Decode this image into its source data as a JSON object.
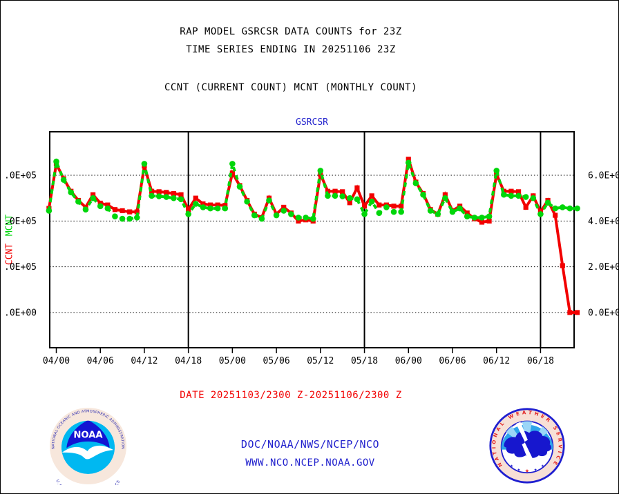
{
  "header": {
    "title_line1": "RAP MODEL GSRCSR DATA COUNTS for 23Z",
    "title_line2": "TIME SERIES ENDING IN 20251106 23Z",
    "subtitle": "CCNT (CURRENT COUNT) MCNT (MONTHLY COUNT)"
  },
  "chart": {
    "panel_title": "GSRCSR",
    "mcnt_label": "MCNT",
    "ccnt_label": "CCNT",
    "mcnt_color": "#00d60a",
    "ccnt_color": "#f20000",
    "title_color": "#2121cd"
  },
  "chart_data": {
    "type": "line",
    "title": "GSRCSR",
    "xlabel": "",
    "ylabel_left_series": [
      "MCNT",
      "CCNT"
    ],
    "x": [
      "03/23",
      "04/00",
      "04/01",
      "04/02",
      "04/03",
      "04/04",
      "04/05",
      "04/06",
      "04/07",
      "04/08",
      "04/09",
      "04/10",
      "04/11",
      "04/12",
      "04/13",
      "04/14",
      "04/15",
      "04/16",
      "04/17",
      "04/18",
      "04/19",
      "04/20",
      "04/21",
      "04/22",
      "04/23",
      "05/00",
      "05/01",
      "05/02",
      "05/03",
      "05/04",
      "05/05",
      "05/06",
      "05/07",
      "05/08",
      "05/09",
      "05/10",
      "05/11",
      "05/12",
      "05/13",
      "05/14",
      "05/15",
      "05/16",
      "05/17",
      "05/18",
      "05/19",
      "05/20",
      "05/21",
      "05/22",
      "05/23",
      "06/00",
      "06/01",
      "06/02",
      "06/03",
      "06/04",
      "06/05",
      "06/06",
      "06/07",
      "06/08",
      "06/09",
      "06/10",
      "06/11",
      "06/12",
      "06/13",
      "06/14",
      "06/15",
      "06/16",
      "06/17",
      "06/18",
      "06/19",
      "06/20",
      "06/21",
      "06/22",
      "06/23"
    ],
    "x_tick_labels": [
      "04/00",
      "04/06",
      "04/12",
      "04/18",
      "05/00",
      "05/06",
      "05/12",
      "05/18",
      "06/00",
      "06/06",
      "06/12",
      "06/18"
    ],
    "x_gridlines_at": [
      "04/18",
      "05/18",
      "06/18"
    ],
    "y_ticks": [
      600000,
      400000,
      200000,
      0
    ],
    "y_tick_labels_left": [
      ".0E+05",
      ".0E+05",
      ".0E+05",
      ".0E+00"
    ],
    "y_tick_labels_right": [
      "6.0E+0",
      "4.0E+0",
      "2.0E+0",
      "0.0E+0"
    ],
    "ylim": [
      -154000,
      790000
    ],
    "grid": "horizontal dotted at y ticks, solid vertical day lines",
    "legend_position": "left-axis rotated labels",
    "series": [
      {
        "name": "CCNT",
        "color": "#f20000",
        "marker": "square",
        "line": "solid",
        "values": [
          455000,
          650000,
          585000,
          530000,
          490000,
          460000,
          515000,
          478000,
          470000,
          450000,
          445000,
          440000,
          440000,
          640000,
          530000,
          528000,
          525000,
          520000,
          515000,
          450000,
          500000,
          475000,
          470000,
          470000,
          468000,
          610000,
          555000,
          490000,
          430000,
          415000,
          500000,
          430000,
          460000,
          435000,
          400000,
          405000,
          400000,
          605000,
          530000,
          530000,
          528000,
          480000,
          545000,
          465000,
          510000,
          470000,
          470000,
          465000,
          465000,
          670000,
          570000,
          520000,
          450000,
          430000,
          515000,
          445000,
          465000,
          435000,
          410000,
          395000,
          400000,
          605000,
          530000,
          530000,
          528000,
          460000,
          510000,
          440000,
          490000,
          425000,
          205000,
          0,
          0
        ]
      },
      {
        "name": "MCNT",
        "color": "#00d60a",
        "marker": "circle",
        "line": "dashed",
        "values": [
          445000,
          660000,
          580000,
          525000,
          485000,
          450000,
          500000,
          465000,
          455000,
          420000,
          410000,
          410000,
          415000,
          650000,
          510000,
          508000,
          505000,
          500000,
          495000,
          430000,
          475000,
          460000,
          455000,
          455000,
          455000,
          650000,
          550000,
          485000,
          425000,
          410000,
          490000,
          425000,
          445000,
          430000,
          415000,
          415000,
          410000,
          620000,
          510000,
          510000,
          508000,
          500000,
          495000,
          430000,
          485000,
          435000,
          460000,
          440000,
          440000,
          655000,
          565000,
          515000,
          445000,
          430000,
          500000,
          440000,
          455000,
          420000,
          415000,
          415000,
          420000,
          620000,
          515000,
          510000,
          510000,
          505000,
          500000,
          430000,
          480000,
          455000,
          460000,
          455000,
          455000
        ]
      }
    ]
  },
  "footer": {
    "date_range": "DATE 20251103/2300 Z-20251106/2300 Z",
    "org": "DOC/NOAA/NWS/NCEP/NCO",
    "url": "WWW.NCO.NCEP.NOAA.GOV"
  },
  "logos": {
    "noaa": {
      "arc_top": "NATIONAL OCEANIC AND ATMOSPHERIC ADMINISTRATION",
      "arc_bottom": "U.S. DEPARTMENT OF COMMERCE",
      "center": "NOAA"
    },
    "nws": {
      "arc": "NATIONAL WEATHER SERVICE",
      "star": "★"
    }
  }
}
